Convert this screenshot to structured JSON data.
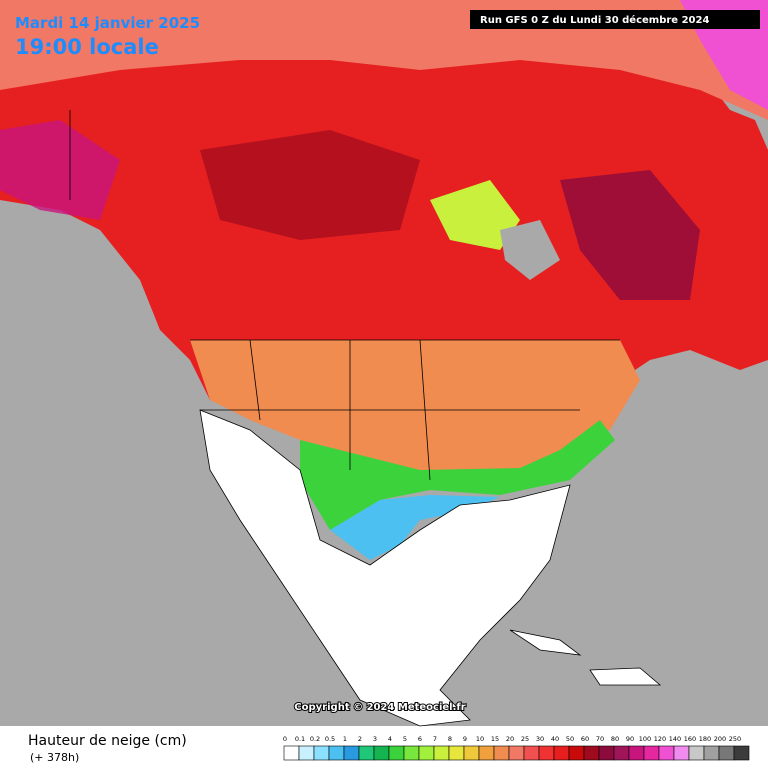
{
  "header": {
    "date": "Mardi 14 janvier 2025",
    "time": "19:00 locale",
    "run": "Run GFS 0 Z du Lundi 30 décembre 2024"
  },
  "map": {
    "copyright": "Copyright © 2024 Meteociel.fr"
  },
  "legend": {
    "title": "Hauteur de neige (cm)",
    "lead": "(+ 378h)",
    "items": [
      {
        "label": "0",
        "color": "#ffffff"
      },
      {
        "label": "0.1",
        "color": "#c8f0ff"
      },
      {
        "label": "0.2",
        "color": "#8ce0ff"
      },
      {
        "label": "0.5",
        "color": "#4cc0f0"
      },
      {
        "label": "1",
        "color": "#2a9ae0"
      },
      {
        "label": "2",
        "color": "#1ec878"
      },
      {
        "label": "3",
        "color": "#14b450"
      },
      {
        "label": "4",
        "color": "#3cd23c"
      },
      {
        "label": "5",
        "color": "#78e63c"
      },
      {
        "label": "6",
        "color": "#a0f03c"
      },
      {
        "label": "7",
        "color": "#c8f03c"
      },
      {
        "label": "8",
        "color": "#e6e63c"
      },
      {
        "label": "9",
        "color": "#f0c83c"
      },
      {
        "label": "10",
        "color": "#f0a03c"
      },
      {
        "label": "15",
        "color": "#f08c50"
      },
      {
        "label": "20",
        "color": "#f07864"
      },
      {
        "label": "25",
        "color": "#f05050"
      },
      {
        "label": "30",
        "color": "#f03232"
      },
      {
        "label": "40",
        "color": "#e61e1e"
      },
      {
        "label": "50",
        "color": "#c80a0a"
      },
      {
        "label": "60",
        "color": "#a00a1e"
      },
      {
        "label": "70",
        "color": "#8c0a3c"
      },
      {
        "label": "80",
        "color": "#a0145a"
      },
      {
        "label": "90",
        "color": "#c8147d"
      },
      {
        "label": "100",
        "color": "#e628a0"
      },
      {
        "label": "120",
        "color": "#f050d2"
      },
      {
        "label": "140",
        "color": "#f08cf0"
      },
      {
        "label": "160",
        "color": "#c8c8c8"
      },
      {
        "label": "180",
        "color": "#a0a0a0"
      },
      {
        "label": "200",
        "color": "#787878"
      },
      {
        "label": "250",
        "color": "#3c3c3c"
      }
    ]
  }
}
